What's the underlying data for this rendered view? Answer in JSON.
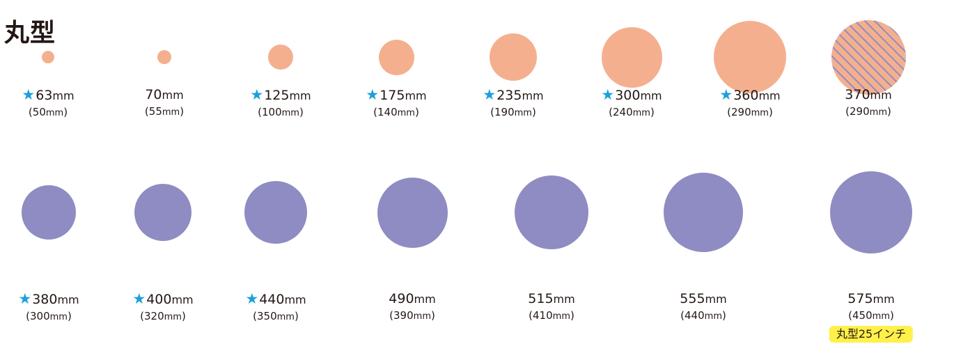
{
  "title": "丸型",
  "colors": {
    "row1": "#f4b08e",
    "row2": "#8e8cc2",
    "stripe": "#8e8cc2",
    "star": "#1aa0dc",
    "badge": "#fff04a"
  },
  "row1": [
    {
      "starred": true,
      "size": "63",
      "inner": "50",
      "diameter_mm": 63
    },
    {
      "starred": false,
      "size": "70",
      "inner": "55",
      "diameter_mm": 70
    },
    {
      "starred": true,
      "size": "125",
      "inner": "100",
      "diameter_mm": 125
    },
    {
      "starred": true,
      "size": "175",
      "inner": "140",
      "diameter_mm": 175
    },
    {
      "starred": true,
      "size": "235",
      "inner": "190",
      "diameter_mm": 235
    },
    {
      "starred": true,
      "size": "300",
      "inner": "240",
      "diameter_mm": 300
    },
    {
      "starred": true,
      "size": "360",
      "inner": "290",
      "diameter_mm": 360
    },
    {
      "starred": false,
      "size": "370",
      "inner": "290",
      "diameter_mm": 370,
      "striped": true
    }
  ],
  "row2": [
    {
      "starred": true,
      "size": "380",
      "inner": "300",
      "diameter_mm": 380
    },
    {
      "starred": true,
      "size": "400",
      "inner": "320",
      "diameter_mm": 400
    },
    {
      "starred": true,
      "size": "440",
      "inner": "350",
      "diameter_mm": 440
    },
    {
      "starred": false,
      "size": "490",
      "inner": "390",
      "diameter_mm": 490
    },
    {
      "starred": false,
      "size": "515",
      "inner": "410",
      "diameter_mm": 515
    },
    {
      "starred": false,
      "size": "555",
      "inner": "440",
      "diameter_mm": 555
    },
    {
      "starred": false,
      "size": "575",
      "inner": "450",
      "diameter_mm": 575,
      "badge": "丸型25インチ"
    }
  ],
  "unit": "mm",
  "star_symbol": "★"
}
